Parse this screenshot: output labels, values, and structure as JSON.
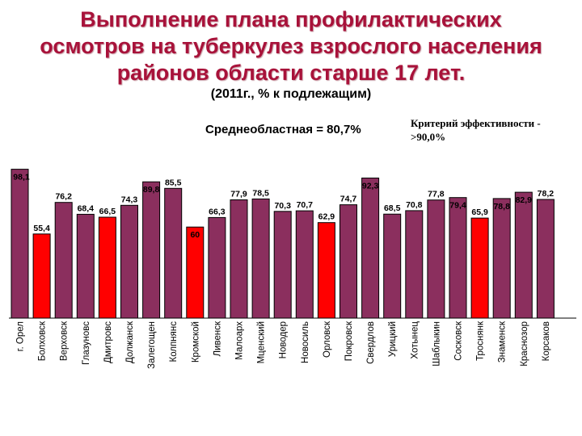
{
  "title_lines": [
    "Выполнение плана профилактических",
    "осмотров на туберкулез взрослого населения",
    "районов области старше 17 лет."
  ],
  "subtitle": "(2011г., % к подлежащим)",
  "average_label": "Среднеобластная = 80,7%",
  "criterion_line1": "Критерий эффективности  -",
  "criterion_line2": ">90,0%",
  "colors": {
    "normal": "#8b2f5e",
    "highlight": "#ff0000",
    "title": "#a8123a"
  },
  "chart_data": {
    "type": "bar",
    "title": "Выполнение плана профилактических осмотров на туберкулез взрослого населения районов области старше 17 лет.",
    "subtitle": "(2011г., % к подлежащим)",
    "ylim": [
      0,
      100
    ],
    "grid": false,
    "categories": [
      "г. Орел",
      "Болховск",
      "Верховск",
      "Глазуновс",
      "Дмитровс",
      "Должанск",
      "Залегощен",
      "Колпнянс",
      "Кромской",
      "Ливенск",
      "Малоарх",
      "Мценский",
      "Новодер",
      "Новосиль",
      "Орловск",
      "Покровск",
      "Свердлов",
      "Урицкий",
      "Хотынец",
      "Шаблыкин",
      "Сосковск",
      "Троснянк",
      "Знаменск",
      "Краснозор",
      "Корсаков"
    ],
    "values": [
      98.1,
      55.4,
      76.2,
      68.4,
      66.5,
      74.3,
      89.8,
      85.5,
      60,
      66.3,
      77.9,
      78.5,
      70.3,
      70.7,
      62.9,
      74.7,
      92.3,
      68.5,
      70.8,
      77.8,
      79.4,
      65.9,
      78.8,
      82.9,
      78.2
    ],
    "value_labels": [
      "98,1",
      "55,4",
      "76,2",
      "68,4",
      "66,5",
      "74,3",
      "89,8",
      "85,5",
      "60",
      "66,3",
      "77,9",
      "78,5",
      "70,3",
      "70,7",
      "62,9",
      "74,7",
      "92,3",
      "68,5",
      "70,8",
      "77,8",
      "79,4",
      "65,9",
      "78,8",
      "82,9",
      "78,2"
    ],
    "highlighted": [
      false,
      true,
      false,
      false,
      true,
      false,
      false,
      false,
      true,
      false,
      false,
      false,
      false,
      false,
      true,
      false,
      false,
      false,
      false,
      false,
      false,
      true,
      false,
      false,
      false
    ]
  }
}
